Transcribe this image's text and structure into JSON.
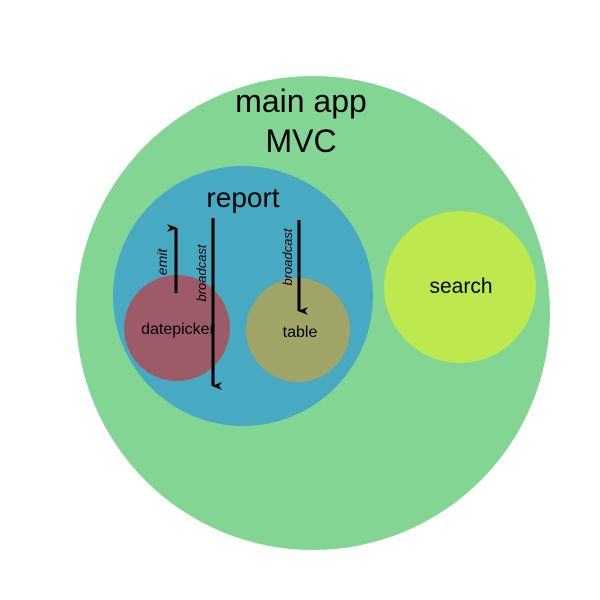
{
  "main_app": {
    "line1": "main app",
    "line2": "MVC",
    "color": "#82d592"
  },
  "report": {
    "label": "report",
    "color": "#48a9c2"
  },
  "search": {
    "label": "search",
    "color": "#bde84e"
  },
  "datepicker": {
    "label": "datepicker",
    "color": "#9c5b67"
  },
  "table": {
    "label": "table",
    "color": "#a0a467"
  },
  "arrows": {
    "emit": "emit",
    "broadcast_datepicker": "broadcast",
    "broadcast_table": "broadcast"
  }
}
